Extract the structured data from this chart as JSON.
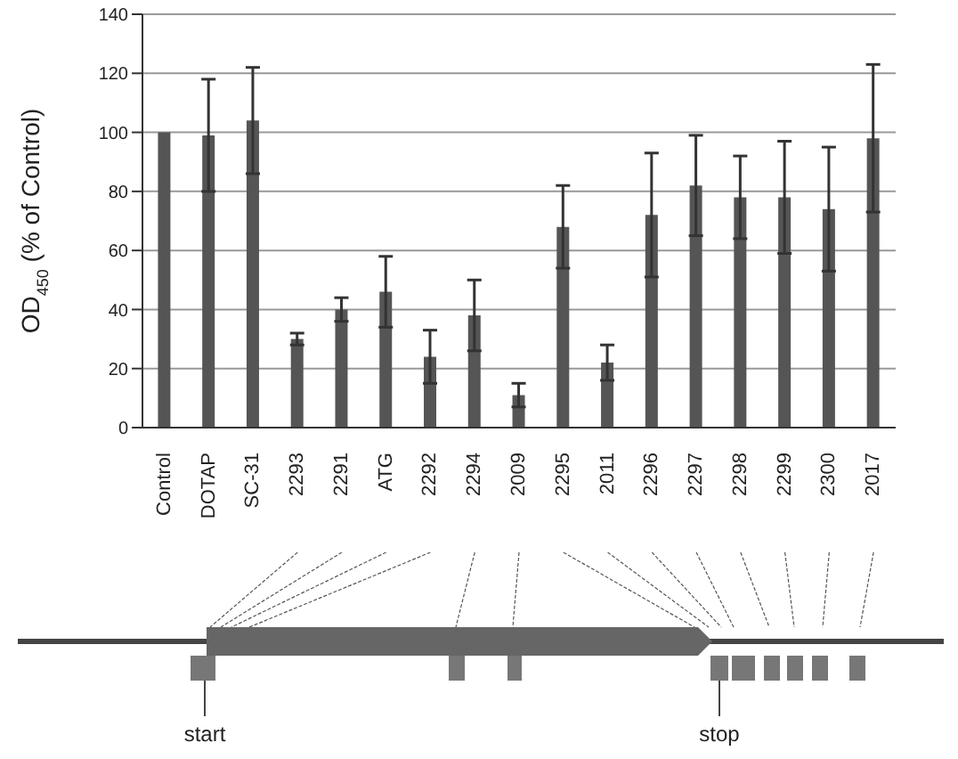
{
  "chart_data": {
    "type": "bar",
    "ylabel": "OD$_{450}$ (% of Control)",
    "categories": [
      "Control",
      "DOTAP",
      "SC-31",
      "2293",
      "2291",
      "ATG",
      "2292",
      "2294",
      "2009",
      "2295",
      "2011",
      "2296",
      "2297",
      "2298",
      "2299",
      "2300",
      "2017"
    ],
    "values": [
      100,
      99,
      104,
      30,
      40,
      46,
      24,
      38,
      11,
      68,
      22,
      72,
      82,
      78,
      78,
      74,
      98
    ],
    "errors": [
      null,
      19,
      18,
      2,
      4,
      12,
      9,
      12,
      4,
      14,
      6,
      21,
      17,
      14,
      19,
      21,
      25
    ],
    "color": "#555555",
    "ylim": [
      0,
      140
    ],
    "yticks": [
      0,
      20,
      40,
      60,
      80,
      100,
      120,
      140
    ],
    "grid": "y",
    "annotations": [
      "start",
      "stop"
    ]
  }
}
